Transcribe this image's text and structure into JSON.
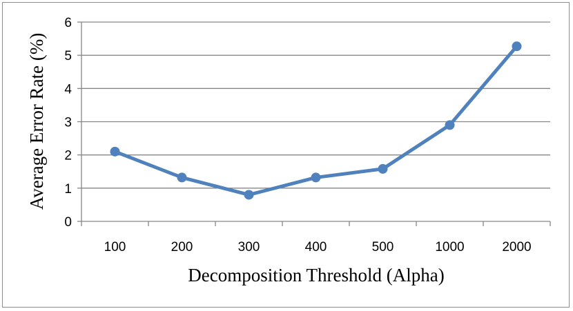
{
  "chart_data": {
    "type": "line",
    "categories": [
      "100",
      "200",
      "300",
      "400",
      "500",
      "1000",
      "2000"
    ],
    "series": [
      {
        "values": [
          2.1,
          1.32,
          0.8,
          1.32,
          1.58,
          2.9,
          5.27
        ]
      }
    ],
    "xlabel": "Decomposition Threshold (Alpha)",
    "ylabel": "Average Error Rate (%)",
    "ylim": [
      0,
      6
    ],
    "yticks": [
      "0",
      "1",
      "2",
      "3",
      "4",
      "5",
      "6"
    ],
    "grid": true,
    "legend": "none",
    "colors": {
      "series": "#4f81bd",
      "grid": "#868686",
      "axis": "#868686"
    }
  }
}
